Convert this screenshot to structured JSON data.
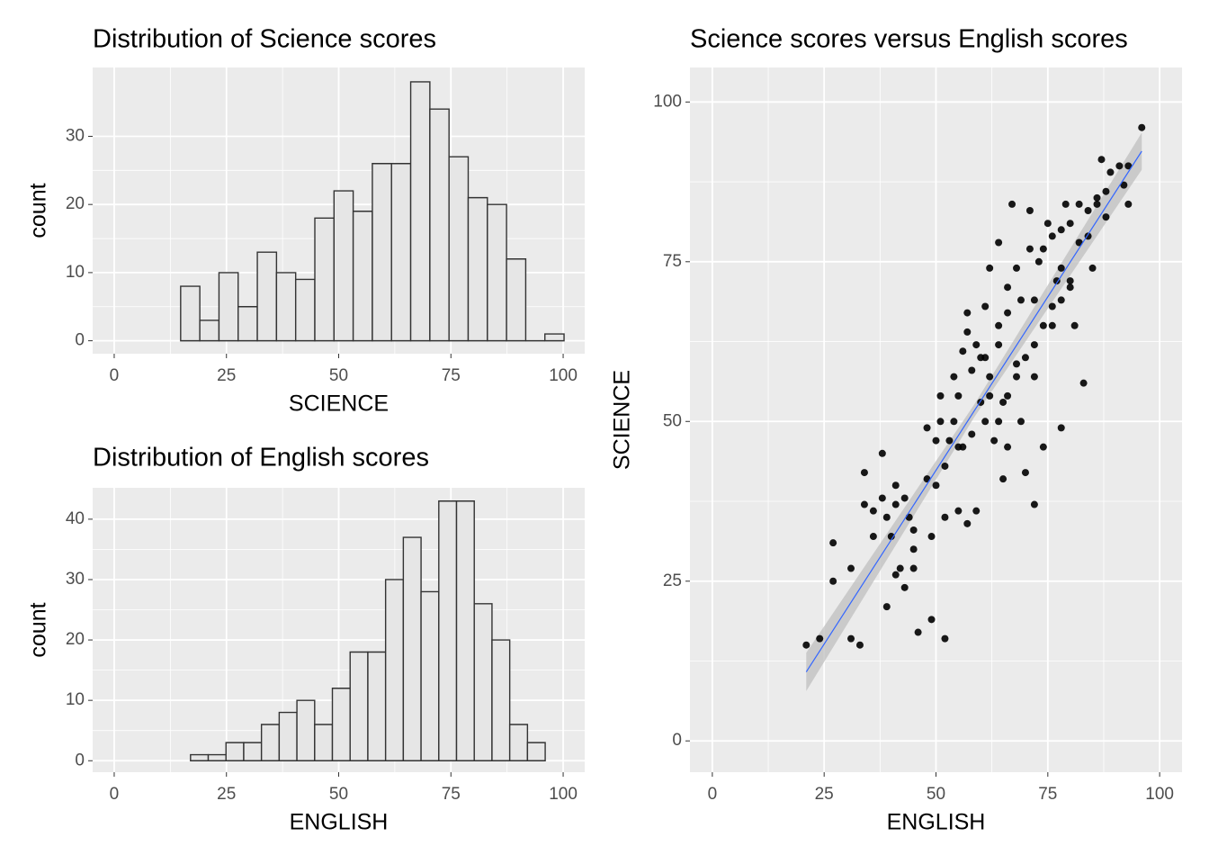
{
  "chart_data": [
    {
      "type": "histogram",
      "title": "Distribution of Science scores",
      "x_label": "SCIENCE",
      "y_label": "count",
      "bins": [
        14.8,
        19.07,
        23.34,
        27.61,
        31.88,
        36.15,
        40.42,
        44.69,
        48.96,
        53.23,
        57.5,
        61.77,
        66.04,
        70.31,
        74.58,
        78.85,
        83.12,
        87.39,
        91.66,
        95.93,
        100.2
      ],
      "values": [
        8,
        3,
        10,
        5,
        13,
        10,
        9,
        18,
        22,
        19,
        26,
        26,
        38,
        34,
        27,
        21,
        20,
        12,
        0,
        1
      ],
      "color": "#e6e6e6",
      "edgecolor": "#333333",
      "xlim": [
        -4.8,
        104.8
      ],
      "xticks": [
        0,
        25,
        50,
        75,
        100
      ],
      "ylim": [
        -1.9,
        40.1
      ],
      "yticks": [
        0,
        10,
        20,
        30
      ],
      "grid": true
    },
    {
      "type": "histogram",
      "title": "Distribution of English scores",
      "x_label": "ENGLISH",
      "y_label": "count",
      "bins": [
        17,
        20.95,
        24.9,
        28.85,
        32.8,
        36.75,
        40.7,
        44.65,
        48.6,
        52.55,
        56.5,
        60.45,
        64.4,
        68.35,
        72.3,
        76.25,
        80.2,
        84.15,
        88.1,
        92.05,
        96
      ],
      "values": [
        1,
        1,
        3,
        3,
        6,
        8,
        10,
        6,
        12,
        18,
        18,
        30,
        37,
        28,
        43,
        43,
        26,
        20,
        6,
        3
      ],
      "color": "#e6e6e6",
      "edgecolor": "#333333",
      "xlim": [
        -4.8,
        104.8
      ],
      "xticks": [
        0,
        25,
        50,
        75,
        100
      ],
      "ylim": [
        -1.9,
        45.2
      ],
      "yticks": [
        0,
        10,
        20,
        30,
        40
      ],
      "grid": true
    },
    {
      "type": "scatter",
      "title": "Science scores versus English scores",
      "x_label": "ENGLISH",
      "y_label": "SCIENCE",
      "x": [
        21,
        24,
        27,
        27,
        31,
        31,
        33,
        34,
        34,
        36,
        36,
        38,
        38,
        39,
        39,
        40,
        41,
        41,
        41,
        42,
        43,
        43,
        44,
        45,
        45,
        46,
        45,
        48,
        48,
        49,
        49,
        50,
        51,
        51,
        52,
        52,
        53,
        54,
        55,
        55,
        55,
        56,
        57,
        57,
        58,
        59,
        60,
        61,
        61,
        62,
        63,
        64,
        64,
        65,
        65,
        66,
        67,
        68,
        69,
        69,
        70,
        71,
        71,
        72,
        72,
        73,
        74,
        75,
        76,
        77,
        78,
        78,
        79,
        80,
        81,
        82,
        83,
        84,
        85,
        86,
        87,
        88,
        89,
        91,
        92,
        93,
        93,
        96,
        58,
        60,
        62,
        64,
        66,
        68,
        72,
        74,
        76,
        78,
        80,
        82,
        84,
        86,
        88,
        56,
        54,
        52,
        50,
        66,
        68,
        70,
        72,
        74,
        76,
        78,
        80,
        64,
        66,
        62,
        61,
        59,
        57
      ],
      "values": [
        15,
        16,
        31,
        25,
        27,
        16,
        15,
        42,
        37,
        36,
        32,
        38,
        45,
        35,
        21,
        32,
        40,
        37,
        26,
        27,
        38,
        24,
        35,
        27,
        30,
        17,
        33,
        41,
        49,
        19,
        32,
        40,
        54,
        50,
        16,
        35,
        47,
        57,
        36,
        46,
        54,
        61,
        67,
        34,
        58,
        36,
        60,
        68,
        50,
        74,
        47,
        65,
        78,
        41,
        53,
        71,
        84,
        59,
        50,
        69,
        42,
        77,
        83,
        37,
        57,
        75,
        46,
        81,
        65,
        72,
        80,
        49,
        84,
        71,
        65,
        78,
        56,
        83,
        74,
        85,
        91,
        82,
        89,
        90,
        87,
        84,
        90,
        96,
        48,
        53,
        57,
        62,
        67,
        74,
        69,
        77,
        79,
        74,
        81,
        84,
        79,
        84,
        86,
        46,
        50,
        43,
        47,
        54,
        57,
        60,
        62,
        65,
        68,
        69,
        72,
        50,
        46,
        54,
        60,
        62,
        64
      ],
      "color": "#000000",
      "fit": {
        "x": [
          21,
          58.5,
          96
        ],
        "y": [
          10.8,
          51.6,
          92.3
        ],
        "lower": [
          7.8,
          50.6,
          89.4
        ],
        "upper": [
          13.8,
          52.6,
          95.2
        ],
        "color": "#3366ff",
        "band_color": "#bfbfbf"
      },
      "xlim": [
        -5,
        105
      ],
      "xticks": [
        0,
        25,
        50,
        75,
        100
      ],
      "ylim": [
        -4.9,
        105.4
      ],
      "yticks": [
        0,
        25,
        50,
        75,
        100
      ],
      "grid": true
    }
  ]
}
